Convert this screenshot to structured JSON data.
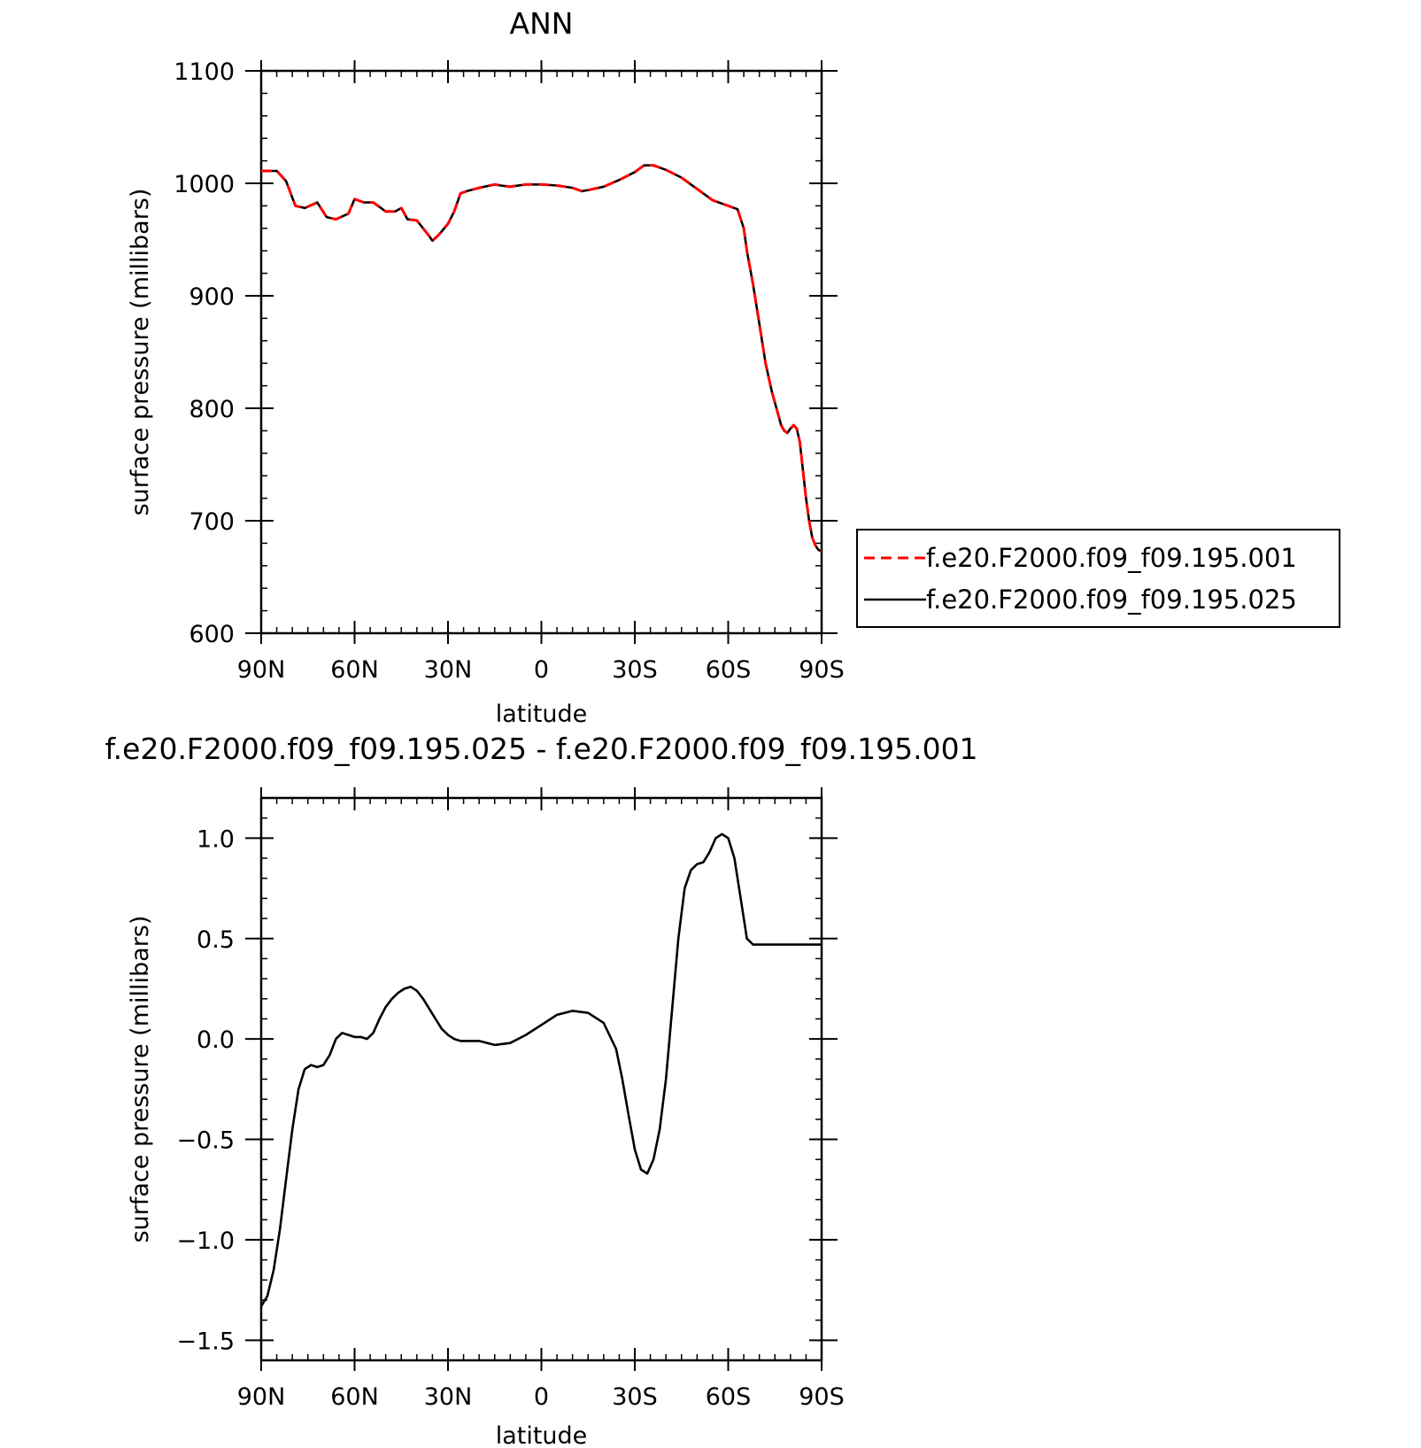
{
  "chart_data": [
    {
      "type": "line",
      "title": "ANN",
      "xlabel": "latitude",
      "ylabel": "surface pressure (millibars)",
      "xlim": [
        90,
        -90
      ],
      "ylim": [
        600,
        1100
      ],
      "x_ticks": [
        90,
        60,
        30,
        0,
        -30,
        -60,
        -90
      ],
      "x_tick_labels": [
        "90N",
        "60N",
        "30N",
        "0",
        "30S",
        "60S",
        "90S"
      ],
      "y_ticks": [
        600,
        700,
        800,
        900,
        1000,
        1100
      ],
      "y_tick_labels": [
        "600",
        "700",
        "800",
        "900",
        "1000",
        "1100"
      ],
      "legend_position": "right",
      "series": [
        {
          "name": "f.e20.F2000.f09_f09.195.001",
          "color": "#ff0000",
          "style": "dashed",
          "x": [
            90,
            85,
            82,
            79,
            76,
            72,
            69,
            66,
            62,
            60,
            57,
            54,
            50,
            47,
            45,
            43,
            40,
            38,
            36,
            35,
            33,
            30,
            28,
            26,
            24,
            20,
            15,
            13,
            10,
            5,
            0,
            -5,
            -10,
            -13,
            -15,
            -20,
            -25,
            -30,
            -33,
            -36,
            -40,
            -45,
            -50,
            -55,
            -60,
            -63,
            -65,
            -66,
            -68,
            -70,
            -72,
            -74,
            -76,
            -77,
            -78,
            -79,
            -80,
            -81,
            -82,
            -83,
            -84,
            -85,
            -86,
            -87,
            -88,
            -89,
            -90
          ],
          "y": [
            1011,
            1011,
            1002,
            980,
            978,
            983,
            970,
            968,
            973,
            986,
            983,
            983,
            975,
            975,
            978,
            968,
            967,
            960,
            953,
            949,
            954,
            964,
            975,
            991,
            993,
            996,
            999,
            998,
            997,
            999,
            999,
            998,
            996,
            993,
            994,
            997,
            1003,
            1010,
            1016,
            1016,
            1012,
            1005,
            995,
            985,
            980,
            977,
            960,
            940,
            910,
            875,
            840,
            815,
            795,
            785,
            780,
            778,
            782,
            785,
            782,
            770,
            745,
            720,
            700,
            685,
            678,
            674,
            673
          ]
        },
        {
          "name": "f.e20.F2000.f09_f09.195.025",
          "color": "#000000",
          "style": "solid",
          "x": [
            90,
            85,
            82,
            79,
            76,
            72,
            69,
            66,
            62,
            60,
            57,
            54,
            50,
            47,
            45,
            43,
            40,
            38,
            36,
            35,
            33,
            30,
            28,
            26,
            24,
            20,
            15,
            13,
            10,
            5,
            0,
            -5,
            -10,
            -13,
            -15,
            -20,
            -25,
            -30,
            -33,
            -36,
            -40,
            -45,
            -50,
            -55,
            -60,
            -63,
            -65,
            -66,
            -68,
            -70,
            -72,
            -74,
            -76,
            -77,
            -78,
            -79,
            -80,
            -81,
            -82,
            -83,
            -84,
            -85,
            -86,
            -87,
            -88,
            -89,
            -90
          ],
          "y": [
            1011,
            1011,
            1002,
            980,
            978,
            983,
            970,
            968,
            973,
            986,
            983,
            983,
            975,
            975,
            978,
            968,
            967,
            960,
            953,
            949,
            954,
            964,
            975,
            991,
            993,
            996,
            999,
            998,
            997,
            999,
            999,
            998,
            996,
            993,
            994,
            997,
            1003,
            1010,
            1016,
            1016,
            1012,
            1005,
            995,
            985,
            980,
            977,
            960,
            940,
            910,
            875,
            840,
            815,
            795,
            785,
            780,
            778,
            782,
            785,
            782,
            770,
            745,
            720,
            700,
            685,
            678,
            674,
            673
          ]
        }
      ]
    },
    {
      "type": "line",
      "title": "f.e20.F2000.f09_f09.195.025 - f.e20.F2000.f09_f09.195.001",
      "xlabel": "latitude",
      "ylabel": "surface pressure (millibars)",
      "xlim": [
        90,
        -90
      ],
      "ylim": [
        -1.6,
        1.2
      ],
      "x_ticks": [
        90,
        60,
        30,
        0,
        -30,
        -60,
        -90
      ],
      "x_tick_labels": [
        "90N",
        "60N",
        "30N",
        "0",
        "30S",
        "60S",
        "90S"
      ],
      "y_ticks": [
        -1.5,
        -1.0,
        -0.5,
        0.0,
        0.5,
        1.0
      ],
      "y_tick_labels": [
        "-1.5",
        "-1.0",
        "-0.5",
        "0.0",
        "0.5",
        "1.0"
      ],
      "series": [
        {
          "color": "#000000",
          "style": "solid",
          "x": [
            90,
            88,
            86,
            84,
            82,
            80,
            78,
            76,
            74,
            72,
            70,
            68,
            66,
            64,
            62,
            60,
            58,
            56,
            54,
            52,
            50,
            48,
            46,
            44,
            42,
            40,
            38,
            36,
            34,
            32,
            30,
            28,
            26,
            24,
            22,
            20,
            15,
            10,
            5,
            0,
            -5,
            -10,
            -15,
            -20,
            -24,
            -26,
            -28,
            -30,
            -32,
            -34,
            -36,
            -38,
            -40,
            -42,
            -44,
            -46,
            -48,
            -50,
            -52,
            -54,
            -56,
            -58,
            -60,
            -62,
            -64,
            -66,
            -68,
            -70,
            -72,
            -74,
            -76,
            -78,
            -80,
            -82,
            -84,
            -86,
            -88,
            -90
          ],
          "y": [
            -1.33,
            -1.28,
            -1.15,
            -0.95,
            -0.7,
            -0.45,
            -0.25,
            -0.15,
            -0.13,
            -0.14,
            -0.13,
            -0.08,
            0.0,
            0.03,
            0.02,
            0.01,
            0.01,
            0.0,
            0.03,
            0.1,
            0.16,
            0.2,
            0.23,
            0.25,
            0.26,
            0.24,
            0.2,
            0.15,
            0.1,
            0.05,
            0.02,
            0.0,
            -0.01,
            -0.01,
            -0.01,
            -0.01,
            -0.03,
            -0.02,
            0.02,
            0.07,
            0.12,
            0.14,
            0.13,
            0.08,
            -0.05,
            -0.2,
            -0.38,
            -0.55,
            -0.65,
            -0.67,
            -0.6,
            -0.45,
            -0.2,
            0.15,
            0.5,
            0.75,
            0.84,
            0.87,
            0.88,
            0.93,
            1.0,
            1.02,
            1.0,
            0.9,
            0.7,
            0.5,
            0.47,
            0.47,
            0.47,
            0.47,
            0.47,
            0.47,
            0.47,
            0.47,
            0.47,
            0.47,
            0.47,
            0.47
          ]
        }
      ]
    }
  ]
}
